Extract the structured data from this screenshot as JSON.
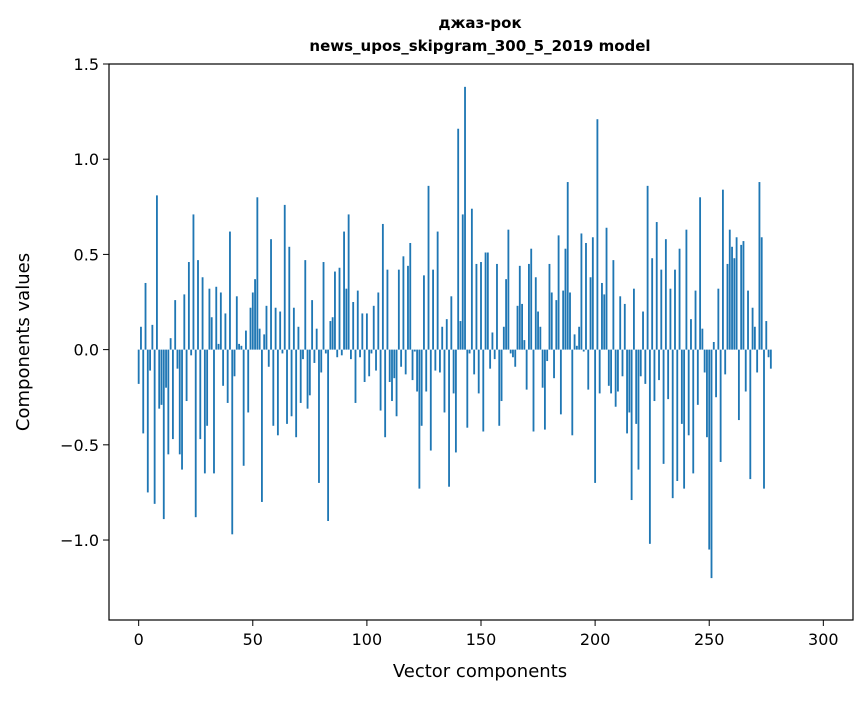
{
  "chart_data": {
    "type": "bar",
    "title": "джаз-рок",
    "subtitle": "news_upos_skipgram_300_5_2019 model",
    "xlabel": "Vector components",
    "ylabel": "Components values",
    "xlim": [
      -13,
      313
    ],
    "ylim": [
      -1.42,
      1.5
    ],
    "xticks": [
      0,
      50,
      100,
      150,
      200,
      250,
      300
    ],
    "xtick_labels": [
      "0",
      "50",
      "100",
      "150",
      "200",
      "250",
      "300"
    ],
    "yticks": [
      -1.0,
      -0.5,
      0.0,
      0.5,
      1.0,
      1.5
    ],
    "ytick_labels": [
      "−1.0",
      "−0.5",
      "0.0",
      "0.5",
      "1.0",
      "1.5"
    ],
    "grid": false,
    "bar_color": "#1f77b4",
    "x_start": 0,
    "values": [
      -0.18,
      0.12,
      -0.44,
      0.35,
      -0.75,
      -0.11,
      0.13,
      -0.81,
      0.81,
      -0.31,
      -0.29,
      -0.89,
      -0.2,
      -0.55,
      0.06,
      -0.47,
      0.26,
      -0.1,
      -0.55,
      -0.63,
      0.29,
      -0.27,
      0.46,
      -0.03,
      0.71,
      -0.88,
      0.47,
      -0.47,
      0.38,
      -0.65,
      -0.4,
      0.32,
      0.17,
      -0.65,
      0.33,
      0.03,
      0.3,
      -0.19,
      0.19,
      -0.28,
      0.62,
      -0.97,
      -0.14,
      0.28,
      0.03,
      0.02,
      -0.61,
      0.1,
      -0.33,
      0.22,
      0.3,
      0.37,
      0.8,
      0.11,
      -0.8,
      0.08,
      0.23,
      -0.09,
      0.58,
      -0.4,
      0.22,
      -0.45,
      0.2,
      -0.02,
      0.76,
      -0.39,
      0.54,
      -0.35,
      0.22,
      -0.46,
      0.12,
      -0.28,
      -0.05,
      0.47,
      -0.31,
      -0.24,
      0.26,
      -0.07,
      0.11,
      -0.7,
      -0.12,
      0.46,
      -0.02,
      -0.9,
      0.15,
      0.17,
      0.41,
      -0.04,
      0.43,
      -0.03,
      0.62,
      0.32,
      0.71,
      -0.05,
      0.25,
      -0.28,
      0.31,
      -0.04,
      0.19,
      -0.17,
      0.19,
      -0.14,
      -0.02,
      0.23,
      -0.11,
      0.3,
      -0.32,
      0.66,
      -0.46,
      0.42,
      -0.17,
      -0.27,
      -0.15,
      -0.35,
      0.42,
      -0.09,
      0.49,
      -0.13,
      0.44,
      0.56,
      -0.16,
      -0.01,
      -0.22,
      -0.73,
      -0.4,
      0.39,
      -0.22,
      0.86,
      -0.53,
      0.42,
      -0.11,
      0.62,
      -0.12,
      0.12,
      -0.33,
      0.16,
      -0.72,
      0.28,
      -0.23,
      -0.54,
      1.16,
      0.15,
      0.71,
      1.38,
      -0.41,
      -0.02,
      0.74,
      -0.13,
      0.45,
      -0.23,
      0.46,
      -0.43,
      0.51,
      0.51,
      -0.1,
      0.09,
      -0.05,
      0.45,
      -0.4,
      -0.27,
      0.12,
      0.37,
      0.63,
      -0.02,
      -0.04,
      -0.09,
      0.23,
      0.44,
      0.24,
      0.05,
      -0.21,
      0.45,
      0.53,
      -0.43,
      0.38,
      0.2,
      0.12,
      -0.2,
      -0.42,
      -0.06,
      0.45,
      0.3,
      -0.15,
      0.26,
      0.6,
      -0.34,
      0.31,
      0.53,
      0.88,
      0.3,
      -0.45,
      0.08,
      0.02,
      0.12,
      0.61,
      -0.01,
      0.56,
      -0.21,
      0.38,
      0.59,
      -0.7,
      1.21,
      -0.23,
      0.35,
      0.29,
      0.64,
      -0.19,
      -0.23,
      0.47,
      -0.3,
      -0.22,
      0.28,
      -0.14,
      0.24,
      -0.44,
      -0.33,
      -0.79,
      0.32,
      -0.39,
      -0.63,
      -0.14,
      0.2,
      -0.18,
      0.86,
      -1.02,
      0.48,
      -0.27,
      0.67,
      -0.16,
      0.42,
      -0.6,
      0.58,
      -0.26,
      0.32,
      -0.78,
      0.42,
      -0.69,
      0.53,
      -0.39,
      -0.73,
      0.63,
      -0.45,
      0.16,
      -0.65,
      0.31,
      -0.29,
      0.8,
      0.11,
      -0.12,
      -0.46,
      -1.05,
      -1.2,
      0.04,
      -0.25,
      0.32,
      -0.59,
      0.84,
      -0.13,
      0.45,
      0.63,
      0.54,
      0.48,
      0.59,
      -0.37,
      0.55,
      0.57,
      -0.22,
      0.31,
      -0.68,
      0.22,
      0.12,
      -0.12,
      0.88,
      0.59,
      -0.73,
      0.15,
      -0.04,
      -0.1
    ]
  }
}
